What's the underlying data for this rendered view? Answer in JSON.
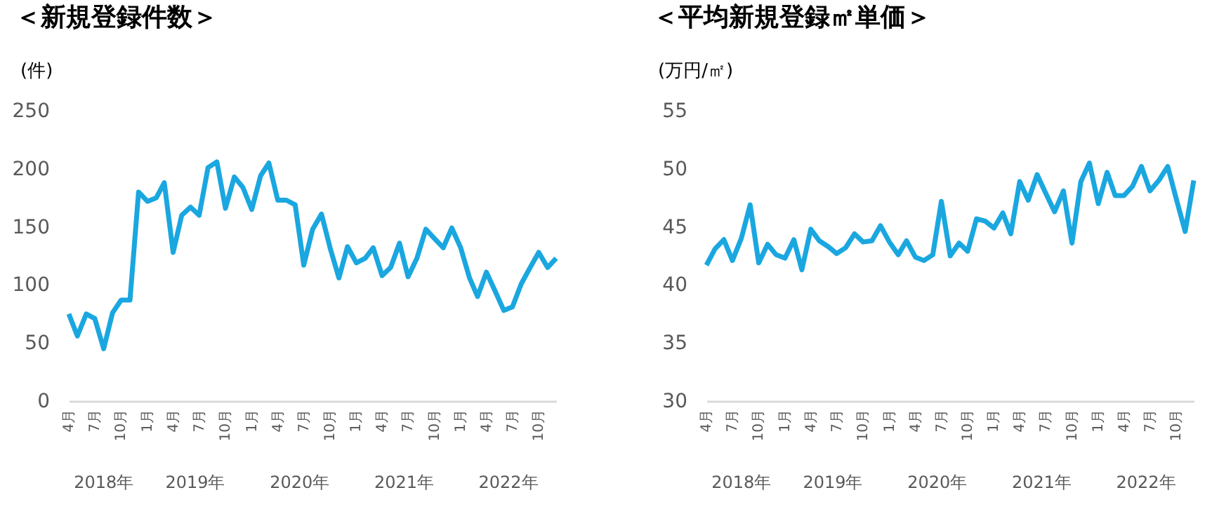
{
  "chart_data": [
    {
      "type": "line",
      "title": "＜新規登録件数＞",
      "ylabel": "(件)",
      "x": [
        "2018-04",
        "2018-05",
        "2018-06",
        "2018-07",
        "2018-08",
        "2018-09",
        "2018-10",
        "2018-11",
        "2018-12",
        "2019-01",
        "2019-02",
        "2019-03",
        "2019-04",
        "2019-05",
        "2019-06",
        "2019-07",
        "2019-08",
        "2019-09",
        "2019-10",
        "2019-11",
        "2019-12",
        "2020-01",
        "2020-02",
        "2020-03",
        "2020-04",
        "2020-05",
        "2020-06",
        "2020-07",
        "2020-08",
        "2020-09",
        "2020-10",
        "2020-11",
        "2020-12",
        "2021-01",
        "2021-02",
        "2021-03",
        "2021-04",
        "2021-05",
        "2021-06",
        "2021-07",
        "2021-08",
        "2021-09",
        "2021-10",
        "2021-11",
        "2021-12",
        "2022-01",
        "2022-02",
        "2022-03",
        "2022-04",
        "2022-05",
        "2022-06",
        "2022-07",
        "2022-08",
        "2022-09",
        "2022-10",
        "2022-11",
        "2022-12"
      ],
      "series": [
        {
          "color": "#1aa7e0",
          "values": [
            75,
            56,
            75,
            71,
            45,
            76,
            87,
            87,
            180,
            172,
            175,
            188,
            128,
            160,
            167,
            160,
            201,
            206,
            166,
            193,
            184,
            165,
            194,
            205,
            173,
            173,
            169,
            117,
            148,
            161,
            132,
            106,
            133,
            119,
            123,
            132,
            108,
            115,
            136,
            107,
            123,
            148,
            140,
            132,
            149,
            132,
            106,
            90,
            111,
            95,
            78,
            81,
            101,
            115,
            128,
            115,
            123
          ]
        }
      ],
      "xlim": [
        "2018-04",
        "2022-12"
      ],
      "xticks": [
        {
          "value": "2018-04",
          "label": "4月"
        },
        {
          "value": "2018-07",
          "label": "7月"
        },
        {
          "value": "2018-10",
          "label": "10月"
        },
        {
          "value": "2019-01",
          "label": "1月"
        },
        {
          "value": "2019-04",
          "label": "4月"
        },
        {
          "value": "2019-07",
          "label": "7月"
        },
        {
          "value": "2019-10",
          "label": "10月"
        },
        {
          "value": "2020-01",
          "label": "1月"
        },
        {
          "value": "2020-04",
          "label": "4月"
        },
        {
          "value": "2020-07",
          "label": "7月"
        },
        {
          "value": "2020-10",
          "label": "10月"
        },
        {
          "value": "2021-01",
          "label": "1月"
        },
        {
          "value": "2021-04",
          "label": "4月"
        },
        {
          "value": "2021-07",
          "label": "7月"
        },
        {
          "value": "2021-10",
          "label": "10月"
        },
        {
          "value": "2022-01",
          "label": "1月"
        },
        {
          "value": "2022-04",
          "label": "4月"
        },
        {
          "value": "2022-07",
          "label": "7月"
        },
        {
          "value": "2022-10",
          "label": "10月"
        }
      ],
      "ylim": [
        0,
        250
      ],
      "yticks": [
        0,
        50,
        100,
        150,
        200,
        250
      ],
      "annotations": [
        "2018年",
        "2019年",
        "2020年",
        "2021年",
        "2022年"
      ]
    },
    {
      "type": "line",
      "title": "＜平均新規登録㎡単価＞",
      "ylabel": "(万円/㎡)",
      "x": [
        "2018-04",
        "2018-05",
        "2018-06",
        "2018-07",
        "2018-08",
        "2018-09",
        "2018-10",
        "2018-11",
        "2018-12",
        "2019-01",
        "2019-02",
        "2019-03",
        "2019-04",
        "2019-05",
        "2019-06",
        "2019-07",
        "2019-08",
        "2019-09",
        "2019-10",
        "2019-11",
        "2019-12",
        "2020-01",
        "2020-02",
        "2020-03",
        "2020-04",
        "2020-05",
        "2020-06",
        "2020-07",
        "2020-08",
        "2020-09",
        "2020-10",
        "2020-11",
        "2020-12",
        "2021-01",
        "2021-02",
        "2021-03",
        "2021-04",
        "2021-05",
        "2021-06",
        "2021-07",
        "2021-08",
        "2021-09",
        "2021-10",
        "2021-11",
        "2021-12",
        "2022-01",
        "2022-02",
        "2022-03",
        "2022-04",
        "2022-05",
        "2022-06",
        "2022-07",
        "2022-08",
        "2022-09",
        "2022-10",
        "2022-11",
        "2022-12"
      ],
      "series": [
        {
          "color": "#1aa7e0",
          "values": [
            41.7,
            43.1,
            43.9,
            42.1,
            44.0,
            46.9,
            41.9,
            43.5,
            42.6,
            42.3,
            43.9,
            41.3,
            44.8,
            43.8,
            43.3,
            42.7,
            43.2,
            44.4,
            43.7,
            43.8,
            45.1,
            43.7,
            42.6,
            43.8,
            42.4,
            42.1,
            42.6,
            47.2,
            42.5,
            43.6,
            42.9,
            45.7,
            45.5,
            44.9,
            46.2,
            44.4,
            48.9,
            47.3,
            49.5,
            47.9,
            46.3,
            48.1,
            43.6,
            48.9,
            50.5,
            47.0,
            49.7,
            47.7,
            47.7,
            48.5,
            50.2,
            48.1,
            49.0,
            50.2,
            47.4,
            44.6,
            49.0
          ]
        }
      ],
      "xlim": [
        "2018-04",
        "2022-12"
      ],
      "xticks": [
        {
          "value": "2018-04",
          "label": "4月"
        },
        {
          "value": "2018-07",
          "label": "7月"
        },
        {
          "value": "2018-10",
          "label": "10月"
        },
        {
          "value": "2019-01",
          "label": "1月"
        },
        {
          "value": "2019-04",
          "label": "4月"
        },
        {
          "value": "2019-07",
          "label": "7月"
        },
        {
          "value": "2019-10",
          "label": "10月"
        },
        {
          "value": "2020-01",
          "label": "1月"
        },
        {
          "value": "2020-04",
          "label": "4月"
        },
        {
          "value": "2020-07",
          "label": "7月"
        },
        {
          "value": "2020-10",
          "label": "10月"
        },
        {
          "value": "2021-01",
          "label": "1月"
        },
        {
          "value": "2021-04",
          "label": "4月"
        },
        {
          "value": "2021-07",
          "label": "7月"
        },
        {
          "value": "2021-10",
          "label": "10月"
        },
        {
          "value": "2022-01",
          "label": "1月"
        },
        {
          "value": "2022-04",
          "label": "4月"
        },
        {
          "value": "2022-07",
          "label": "7月"
        },
        {
          "value": "2022-10",
          "label": "10月"
        }
      ],
      "ylim": [
        30,
        55
      ],
      "yticks": [
        30,
        35,
        40,
        45,
        50,
        55
      ],
      "annotations": [
        "2018年",
        "2019年",
        "2020年",
        "2021年",
        "2022年"
      ]
    }
  ]
}
